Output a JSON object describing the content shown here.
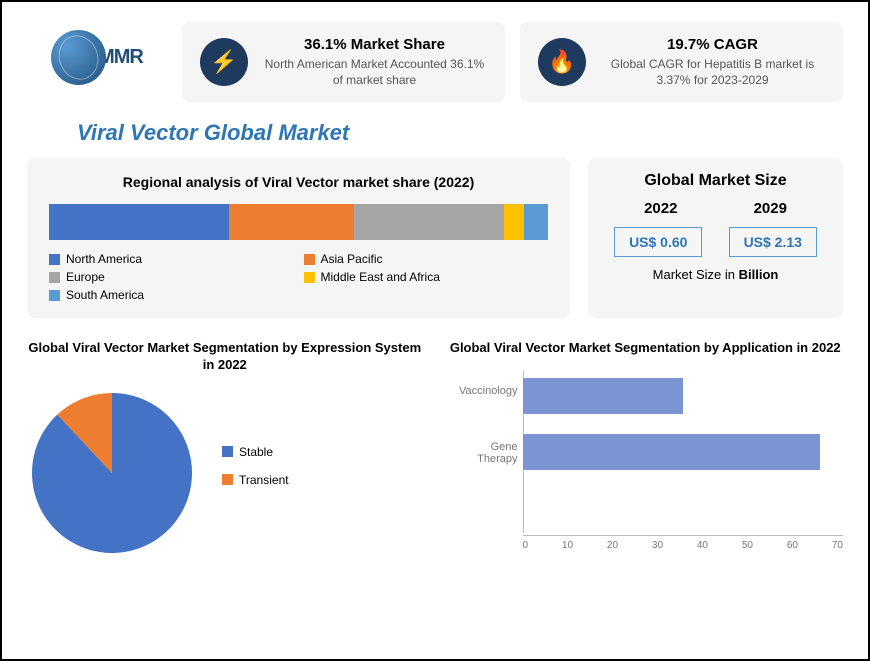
{
  "logo_text": "MMR",
  "stat1": {
    "title": "36.1% Market Share",
    "desc": "North American Market Accounted 36.1% of market share",
    "icon": "⚡"
  },
  "stat2": {
    "title": "19.7% CAGR",
    "desc": "Global CAGR for Hepatitis B market is 3.37% for 2023-2029",
    "icon": "🔥"
  },
  "main_title": "Viral Vector Global Market",
  "regional": {
    "title": "Regional analysis of Viral Vector market share (2022)",
    "segments": [
      {
        "label": "North America",
        "value": 36.1,
        "color": "#4472c4"
      },
      {
        "label": "Asia Pacific",
        "value": 25,
        "color": "#ed7d31"
      },
      {
        "label": "Europe",
        "value": 30,
        "color": "#a5a5a5"
      },
      {
        "label": "Middle East and Africa",
        "value": 4,
        "color": "#ffc000"
      },
      {
        "label": "South America",
        "value": 4.9,
        "color": "#5b9bd5"
      }
    ]
  },
  "market_size": {
    "title": "Global Market Size",
    "year1": "2022",
    "year2": "2029",
    "val1": "US$ 0.60",
    "val2": "US$ 2.13",
    "note_prefix": "Market Size in ",
    "note_bold": "Billion"
  },
  "pie": {
    "title": "Global Viral Vector Market Segmentation by Expression System in 2022",
    "slices": [
      {
        "label": "Stable",
        "value": 88,
        "color": "#4472c4"
      },
      {
        "label": "Transient",
        "value": 12,
        "color": "#ed7d31"
      }
    ],
    "background": "#ffffff"
  },
  "hbar": {
    "title": "Global Viral Vector Market Segmentation by Application in 2022",
    "xmax": 70,
    "xtick_step": 10,
    "xticks": [
      "0",
      "10",
      "20",
      "30",
      "40",
      "50",
      "60",
      "70"
    ],
    "bar_color": "#7b95d4",
    "axis_color": "#bbbbbb",
    "label_color": "#777777",
    "bars": [
      {
        "label": "Vaccinology",
        "value": 35
      },
      {
        "label": "Gene Therapy",
        "value": 65
      }
    ]
  },
  "colors": {
    "card_bg": "#f5f5f5",
    "title_color": "#2e75b6",
    "icon_bg": "#1f3a5f"
  }
}
